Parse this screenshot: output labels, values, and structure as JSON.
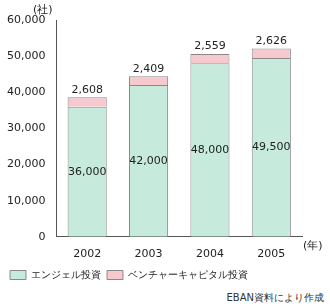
{
  "chart_data": {
    "type": "bar",
    "stacked": true,
    "ylabel": "(社)",
    "xlabel": "(年)",
    "note": "EBAN資料により作成",
    "categories": [
      "2002",
      "2003",
      "2004",
      "2005"
    ],
    "series": [
      {
        "name": "エンジェル投資",
        "color": "#c6eadb",
        "values": [
          36000,
          42000,
          48000,
          49500
        ],
        "value_labels": [
          "36,000",
          "42,000",
          "48,000",
          "49,500"
        ]
      },
      {
        "name": "ベンチャーキャピタル投資",
        "color": "#f8c8cf",
        "values": [
          2608,
          2409,
          2559,
          2626
        ],
        "value_labels": [
          "2,608",
          "2,409",
          "2,559",
          "2,626"
        ]
      }
    ],
    "ylim": [
      0,
      60000
    ],
    "yticks": [
      0,
      {
        "value": 10000,
        "label": "10,000"
      },
      {
        "value": 20000,
        "label": "20,000"
      },
      {
        "value": 30000,
        "label": "30,000"
      },
      {
        "value": 40000,
        "label": "40,000"
      },
      {
        "value": 50000,
        "label": "50,000"
      },
      {
        "value": 60000,
        "label": "60,000"
      }
    ],
    "grid": false,
    "legend": "bottom",
    "data_labels": true
  }
}
